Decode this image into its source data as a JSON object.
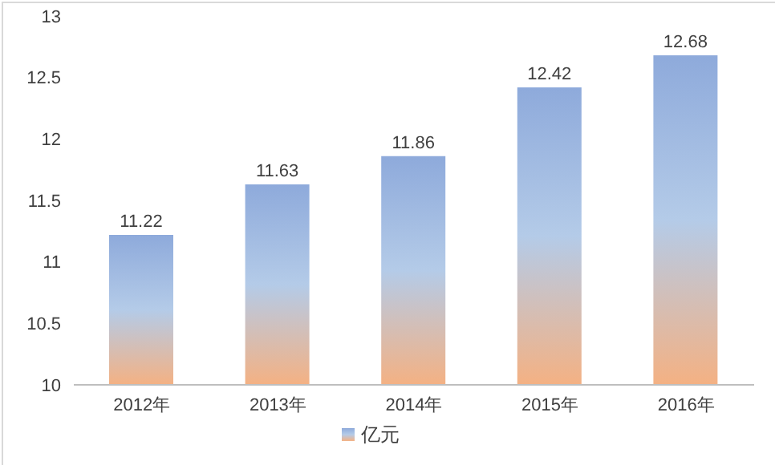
{
  "chart_data": {
    "type": "bar",
    "categories": [
      "2012年",
      "2013年",
      "2014年",
      "2015年",
      "2016年"
    ],
    "series": [
      {
        "name": "亿元",
        "color": "#8eaadb",
        "values": [
          11.22,
          11.63,
          11.86,
          12.42,
          12.68
        ]
      }
    ],
    "ylim": [
      10,
      13
    ],
    "yticks": [
      10,
      10.5,
      11,
      11.5,
      12,
      12.5,
      13
    ],
    "data_labels": true,
    "legend": "bottom",
    "grid": false
  }
}
